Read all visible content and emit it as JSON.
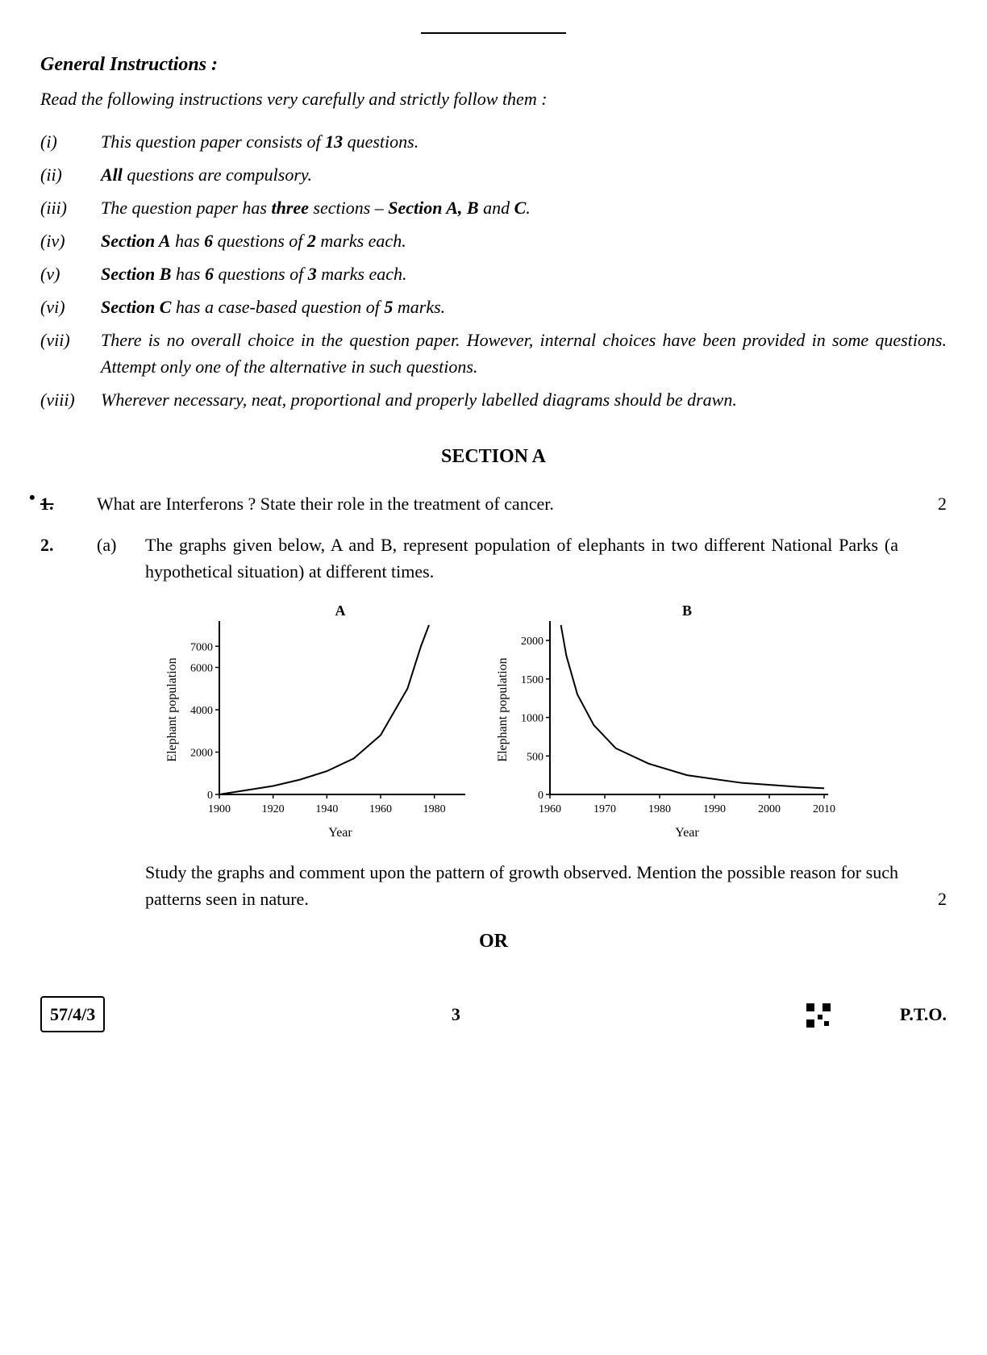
{
  "header": {
    "title": "General Instructions :",
    "intro": "Read the following instructions very carefully and strictly follow them :"
  },
  "instructions": [
    {
      "num": "(i)",
      "html": "This question paper consists of <b>13</b> questions."
    },
    {
      "num": "(ii)",
      "html": "<b>All</b> questions are compulsory."
    },
    {
      "num": "(iii)",
      "html": "The question paper has <b>three</b> sections – <b>Section A, B</b> and <b>C</b>."
    },
    {
      "num": "(iv)",
      "html": "<b>Section A</b> has <b>6</b> questions of <b>2</b> marks each."
    },
    {
      "num": "(v)",
      "html": "<b>Section B</b> has <b>6</b> questions of <b>3</b> marks each."
    },
    {
      "num": "(vi)",
      "html": "<b>Section C</b> has a case-based question of <b>5</b> marks."
    },
    {
      "num": "(vii)",
      "html": "There is no overall choice in the question paper. However, internal choices have been provided in some questions. Attempt only one of the alternative in such questions."
    },
    {
      "num": "(viii)",
      "html": "Wherever necessary, neat, proportional and properly labelled diagrams should be drawn."
    }
  ],
  "sectionA": {
    "heading": "SECTION A",
    "q1": {
      "num": "1.",
      "text": "What are Interferons ? State their role in the treatment of cancer.",
      "marks": "2"
    },
    "q2": {
      "num": "2.",
      "sub_num": "(a)",
      "intro_text": "The graphs given below, A and B, represent population of elephants in two different National Parks (a hypothetical situation) at different times.",
      "conclusion_text": "Study the graphs and comment upon the pattern of growth observed. Mention the possible reason for such patterns seen in nature.",
      "marks": "2",
      "or_text": "OR"
    }
  },
  "chartA": {
    "type": "line",
    "title": "A",
    "xlabel": "Year",
    "ylabel": "Elephant population",
    "x_ticks": [
      1900,
      1920,
      1940,
      1960,
      1980
    ],
    "y_ticks": [
      0,
      2000,
      4000,
      6000,
      7000
    ],
    "ylim": [
      0,
      8000
    ],
    "xlim": [
      1900,
      1990
    ],
    "line_color": "#000000",
    "line_width": 2,
    "axis_color": "#000000",
    "background_color": "#ffffff",
    "title_fontsize": 18,
    "label_fontsize": 14,
    "data_points": [
      {
        "x": 1900,
        "y": 0
      },
      {
        "x": 1910,
        "y": 200
      },
      {
        "x": 1920,
        "y": 400
      },
      {
        "x": 1930,
        "y": 700
      },
      {
        "x": 1940,
        "y": 1100
      },
      {
        "x": 1950,
        "y": 1700
      },
      {
        "x": 1960,
        "y": 2800
      },
      {
        "x": 1970,
        "y": 5000
      },
      {
        "x": 1975,
        "y": 7000
      },
      {
        "x": 1978,
        "y": 8000
      }
    ]
  },
  "chartB": {
    "type": "line",
    "title": "B",
    "xlabel": "Year",
    "ylabel": "Elephant population",
    "x_ticks": [
      1960,
      1970,
      1980,
      1990,
      2000,
      2010
    ],
    "y_ticks": [
      0,
      500,
      1000,
      1500,
      2000
    ],
    "ylim": [
      0,
      2200
    ],
    "xlim": [
      1960,
      2010
    ],
    "line_color": "#000000",
    "line_width": 2,
    "axis_color": "#000000",
    "background_color": "#ffffff",
    "title_fontsize": 18,
    "label_fontsize": 14,
    "data_points": [
      {
        "x": 1962,
        "y": 2200
      },
      {
        "x": 1963,
        "y": 1800
      },
      {
        "x": 1965,
        "y": 1300
      },
      {
        "x": 1968,
        "y": 900
      },
      {
        "x": 1972,
        "y": 600
      },
      {
        "x": 1978,
        "y": 400
      },
      {
        "x": 1985,
        "y": 250
      },
      {
        "x": 1995,
        "y": 150
      },
      {
        "x": 2005,
        "y": 100
      },
      {
        "x": 2010,
        "y": 80
      }
    ]
  },
  "footer": {
    "code": "57/4/3",
    "page": "3",
    "pto": "P.T.O."
  }
}
